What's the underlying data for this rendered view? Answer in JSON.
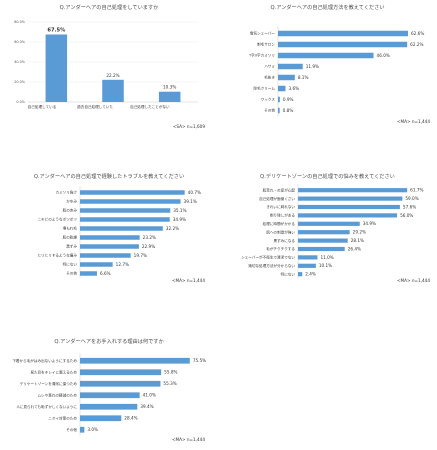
{
  "colors": {
    "bar": "#5b9bd5"
  },
  "chart_data": [
    {
      "type": "bar",
      "orientation": "vertical",
      "title": "Q.アンダーヘアの自己処理をしていますか",
      "categories": [
        "自己処理している",
        "過去自己処理していた",
        "自己処理したことがない"
      ],
      "values": [
        67.5,
        22.2,
        10.3
      ],
      "value_labels": [
        "67.5%",
        "22.2%",
        "10.3%"
      ],
      "yticks": [
        "0.0%",
        "20.0%",
        "40.0%",
        "60.0%",
        "80.0%"
      ],
      "ylim": [
        0,
        80
      ],
      "grid": true,
      "note": "<SA> n=1,609"
    },
    {
      "type": "bar",
      "orientation": "horizontal",
      "title": "Q.アンダーヘアの自己処理方法を教えてください",
      "categories": [
        "電気シェーバー",
        "剃毛サロン",
        "T字/I字カミソリ",
        "ハサミ",
        "毛抜き",
        "除毛クリーム",
        "ワックス",
        "その他"
      ],
      "values": [
        62.6,
        62.2,
        46.0,
        11.9,
        8.1,
        3.6,
        0.9,
        0.8
      ],
      "value_labels": [
        "62.6%",
        "62.2%",
        "46.0%",
        "11.9%",
        "8.1%",
        "3.6%",
        "0.9%",
        "0.8%"
      ],
      "xlim": [
        0,
        65
      ],
      "note": "<MA> n=1,444"
    },
    {
      "type": "bar",
      "orientation": "horizontal",
      "title": "Q.アンダーヘアの自己処理で経験したトラブルを教えてください",
      "categories": [
        "カミソリ負け",
        "かゆみ",
        "肌の赤み",
        "ニキビのようなポツポツ",
        "埋もれ毛",
        "肌の乾燥",
        "黒ずみ",
        "ヒリヒリするような痛み",
        "特にない",
        "その他"
      ],
      "values": [
        40.7,
        39.1,
        35.1,
        34.9,
        32.2,
        23.2,
        22.9,
        19.7,
        12.7,
        6.6
      ],
      "value_labels": [
        "40.7%",
        "39.1%",
        "35.1%",
        "34.9%",
        "32.2%",
        "23.2%",
        "22.9%",
        "19.7%",
        "12.7%",
        "6.6%"
      ],
      "xlim": [
        0,
        42
      ],
      "note": "<MA> n=1,444"
    },
    {
      "type": "bar",
      "orientation": "horizontal",
      "title": "Q.デリケートゾーンの自己処理での悩みを教えてください",
      "categories": [
        "肌荒れ・炎症が心配",
        "自己処理が面倒くさい",
        "きれいに剃れない",
        "剃り残しがある",
        "処理に時間がかかる",
        "肌への刺激が強い",
        "黒ずみになる",
        "毛がチクチクする",
        "シェーバーが不衛生で清潔でない",
        "適切な処理方法が分からない",
        "特にない"
      ],
      "values": [
        61.7,
        59.0,
        57.6,
        56.0,
        34.9,
        29.2,
        28.1,
        26.4,
        11.0,
        10.1,
        2.4
      ],
      "value_labels": [
        "61.7%",
        "59.0%",
        "57.6%",
        "56.0%",
        "34.9%",
        "29.2%",
        "28.1%",
        "26.4%",
        "11.0%",
        "10.1%",
        "2.4%"
      ],
      "xlim": [
        0,
        65
      ],
      "note": "<MA> n=1,444"
    },
    {
      "type": "bar",
      "orientation": "horizontal",
      "title": "Q.アンダーヘアをお手入れする理由は何ですか",
      "categories": [
        "下着から毛がはみ出ないようにするため",
        "見た目をキレイに整えるため",
        "デリケートゾーンを清潔に保つため",
        "ムレや蒸れの軽減のため",
        "人に見られても恥ずかしくないように",
        "ニオイ対策のため",
        "その他"
      ],
      "values": [
        75.5,
        55.8,
        55.3,
        41.0,
        39.4,
        28.4,
        3.0
      ],
      "value_labels": [
        "75.5%",
        "55.8%",
        "55.3%",
        "41.0%",
        "39.4%",
        "28.4%",
        "3.0%"
      ],
      "xlim": [
        0,
        77
      ],
      "note": "<MA> n=1,444"
    }
  ]
}
